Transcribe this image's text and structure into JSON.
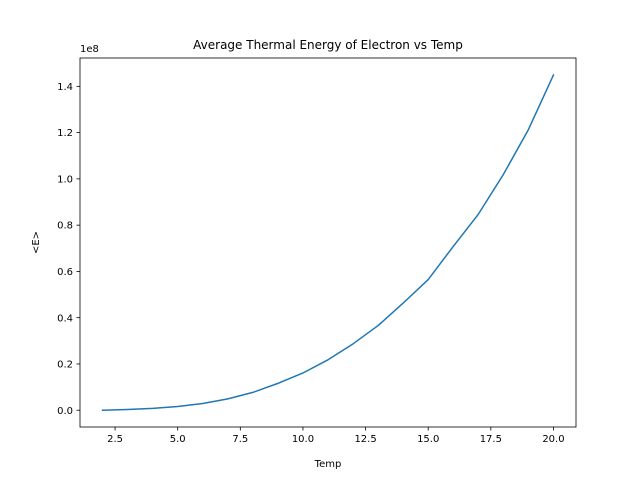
{
  "chart_data": {
    "type": "line",
    "title": "Average Thermal Energy of Electron vs Temp",
    "xlabel": "Temp",
    "ylabel": "<E>",
    "y_offset_label": "1e8",
    "xlim": [
      1.1,
      20.9
    ],
    "ylim": [
      -0.0725,
      1.5225
    ],
    "x_ticks": [
      2.5,
      5.0,
      7.5,
      10.0,
      12.5,
      15.0,
      17.5,
      20.0
    ],
    "x_tick_labels": [
      "2.5",
      "5.0",
      "7.5",
      "10.0",
      "12.5",
      "15.0",
      "17.5",
      "20.0"
    ],
    "y_ticks": [
      0.0,
      0.2,
      0.4,
      0.6,
      0.8,
      1.0,
      1.2,
      1.4
    ],
    "y_tick_labels": [
      "0.0",
      "0.2",
      "0.4",
      "0.6",
      "0.8",
      "1.0",
      "1.2",
      "1.4"
    ],
    "grid": false,
    "series": [
      {
        "color": "#1f77b4",
        "x": [
          2,
          3,
          4,
          5,
          6,
          7,
          8,
          9,
          10,
          11,
          12,
          13,
          14,
          15,
          16,
          17,
          18,
          19,
          20
        ],
        "y": [
          0.0,
          0.003,
          0.008,
          0.016,
          0.029,
          0.049,
          0.077,
          0.116,
          0.161,
          0.218,
          0.287,
          0.366,
          0.463,
          0.565,
          0.708,
          0.847,
          1.019,
          1.213,
          1.449
        ]
      }
    ]
  }
}
